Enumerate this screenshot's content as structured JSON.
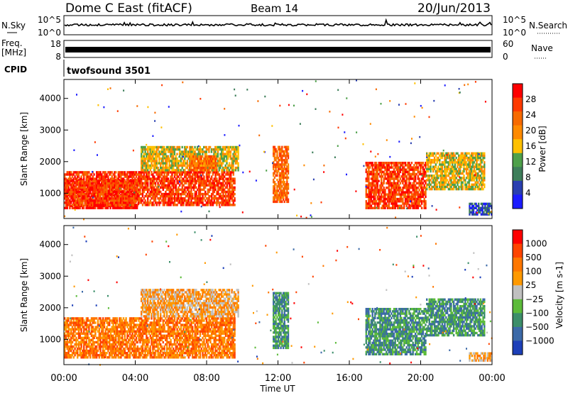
{
  "header": {
    "site": "Dome C East (fitACF)",
    "beam": "Beam 14",
    "date": "20/Jun/2013"
  },
  "top_strips": {
    "nsky_label": "N.Sky",
    "nsearch_label": "N.Search",
    "freq_label": "Freq.",
    "freq_unit": "[MHz]",
    "nave_label": "Nave",
    "cpid_label": "CPID",
    "cpid_value": "twofsound 3501",
    "noise_ticks": [
      "10^5",
      "10^0"
    ],
    "noise_right_ticks": [
      "10^5",
      "10^0"
    ],
    "freq_ticks": [
      "18",
      "8"
    ],
    "nave_ticks": [
      "60",
      "0"
    ]
  },
  "colors": {
    "power_scale": [
      "#1c1cff",
      "#2a3fb0",
      "#3e7e5a",
      "#4ea04a",
      "#ffc000",
      "#ff8a00",
      "#f76a00",
      "#ff3a00",
      "#ff0000"
    ],
    "velocity_scale": [
      "#1d3fb8",
      "#3c6aa8",
      "#3c8e6a",
      "#5cbb3a",
      "#c0c0c0",
      "#ff9900",
      "#ff7700",
      "#ff4400",
      "#ff0000"
    ],
    "gray": "#bdbdbd"
  },
  "chart_data": [
    {
      "type": "heatmap",
      "name": "power",
      "ylabel": "Slant Range [km]",
      "yticks": [
        "1000",
        "2000",
        "3000",
        "4000"
      ],
      "ylim": [
        200,
        4600
      ],
      "colorbar_label": "Power [dB]",
      "colorbar_ticks": [
        "4",
        "8",
        "12",
        "16",
        "20",
        "24",
        "28"
      ],
      "blobs": [
        {
          "t0": 0.0,
          "t1": 4.2,
          "r0": 500,
          "r1": 1450,
          "level": 8
        },
        {
          "t0": 0.0,
          "t1": 9.6,
          "r0": 600,
          "r1": 1700,
          "level": 7
        },
        {
          "t0": 4.3,
          "t1": 9.8,
          "r0": 1700,
          "r1": 2500,
          "level": 4
        },
        {
          "t0": 7.0,
          "t1": 8.6,
          "r0": 1700,
          "r1": 2200,
          "level": 6
        },
        {
          "t0": 11.7,
          "t1": 12.6,
          "r0": 700,
          "r1": 2500,
          "level": 6
        },
        {
          "t0": 16.9,
          "t1": 20.3,
          "r0": 500,
          "r1": 2000,
          "level": 7
        },
        {
          "t0": 20.3,
          "t1": 23.6,
          "r0": 1100,
          "r1": 2300,
          "level": 4
        },
        {
          "t0": 22.7,
          "t1": 24.0,
          "r0": 300,
          "r1": 700,
          "level": 1
        }
      ]
    },
    {
      "type": "heatmap",
      "name": "velocity",
      "ylabel": "Slant Range [km]",
      "yticks": [
        "1000",
        "2000",
        "3000",
        "4000"
      ],
      "ylim": [
        200,
        4600
      ],
      "colorbar_label": "Velocity [m s-1]",
      "colorbar_ticks": [
        "1000",
        "500",
        "100",
        "25",
        "−25",
        "−100",
        "−500",
        "−1000"
      ],
      "blobs": [
        {
          "t0": 0.0,
          "t1": 9.6,
          "r0": 400,
          "r1": 1700,
          "level": 6
        },
        {
          "t0": 4.3,
          "t1": 9.8,
          "r0": 1700,
          "r1": 2600,
          "level": 5
        },
        {
          "t0": 11.7,
          "t1": 12.6,
          "r0": 700,
          "r1": 2500,
          "level": 2
        },
        {
          "t0": 16.9,
          "t1": 20.3,
          "r0": 500,
          "r1": 2000,
          "level": 2
        },
        {
          "t0": 20.3,
          "t1": 23.6,
          "r0": 1100,
          "r1": 2300,
          "level": 2
        },
        {
          "t0": 22.7,
          "t1": 24.0,
          "r0": 300,
          "r1": 600,
          "level": 5
        }
      ]
    }
  ],
  "xaxis": {
    "ticks": [
      "00:00",
      "04:00",
      "08:00",
      "12:00",
      "16:00",
      "20:00",
      "00:00"
    ],
    "label": "Time UT",
    "range_hours": [
      0,
      24
    ]
  }
}
